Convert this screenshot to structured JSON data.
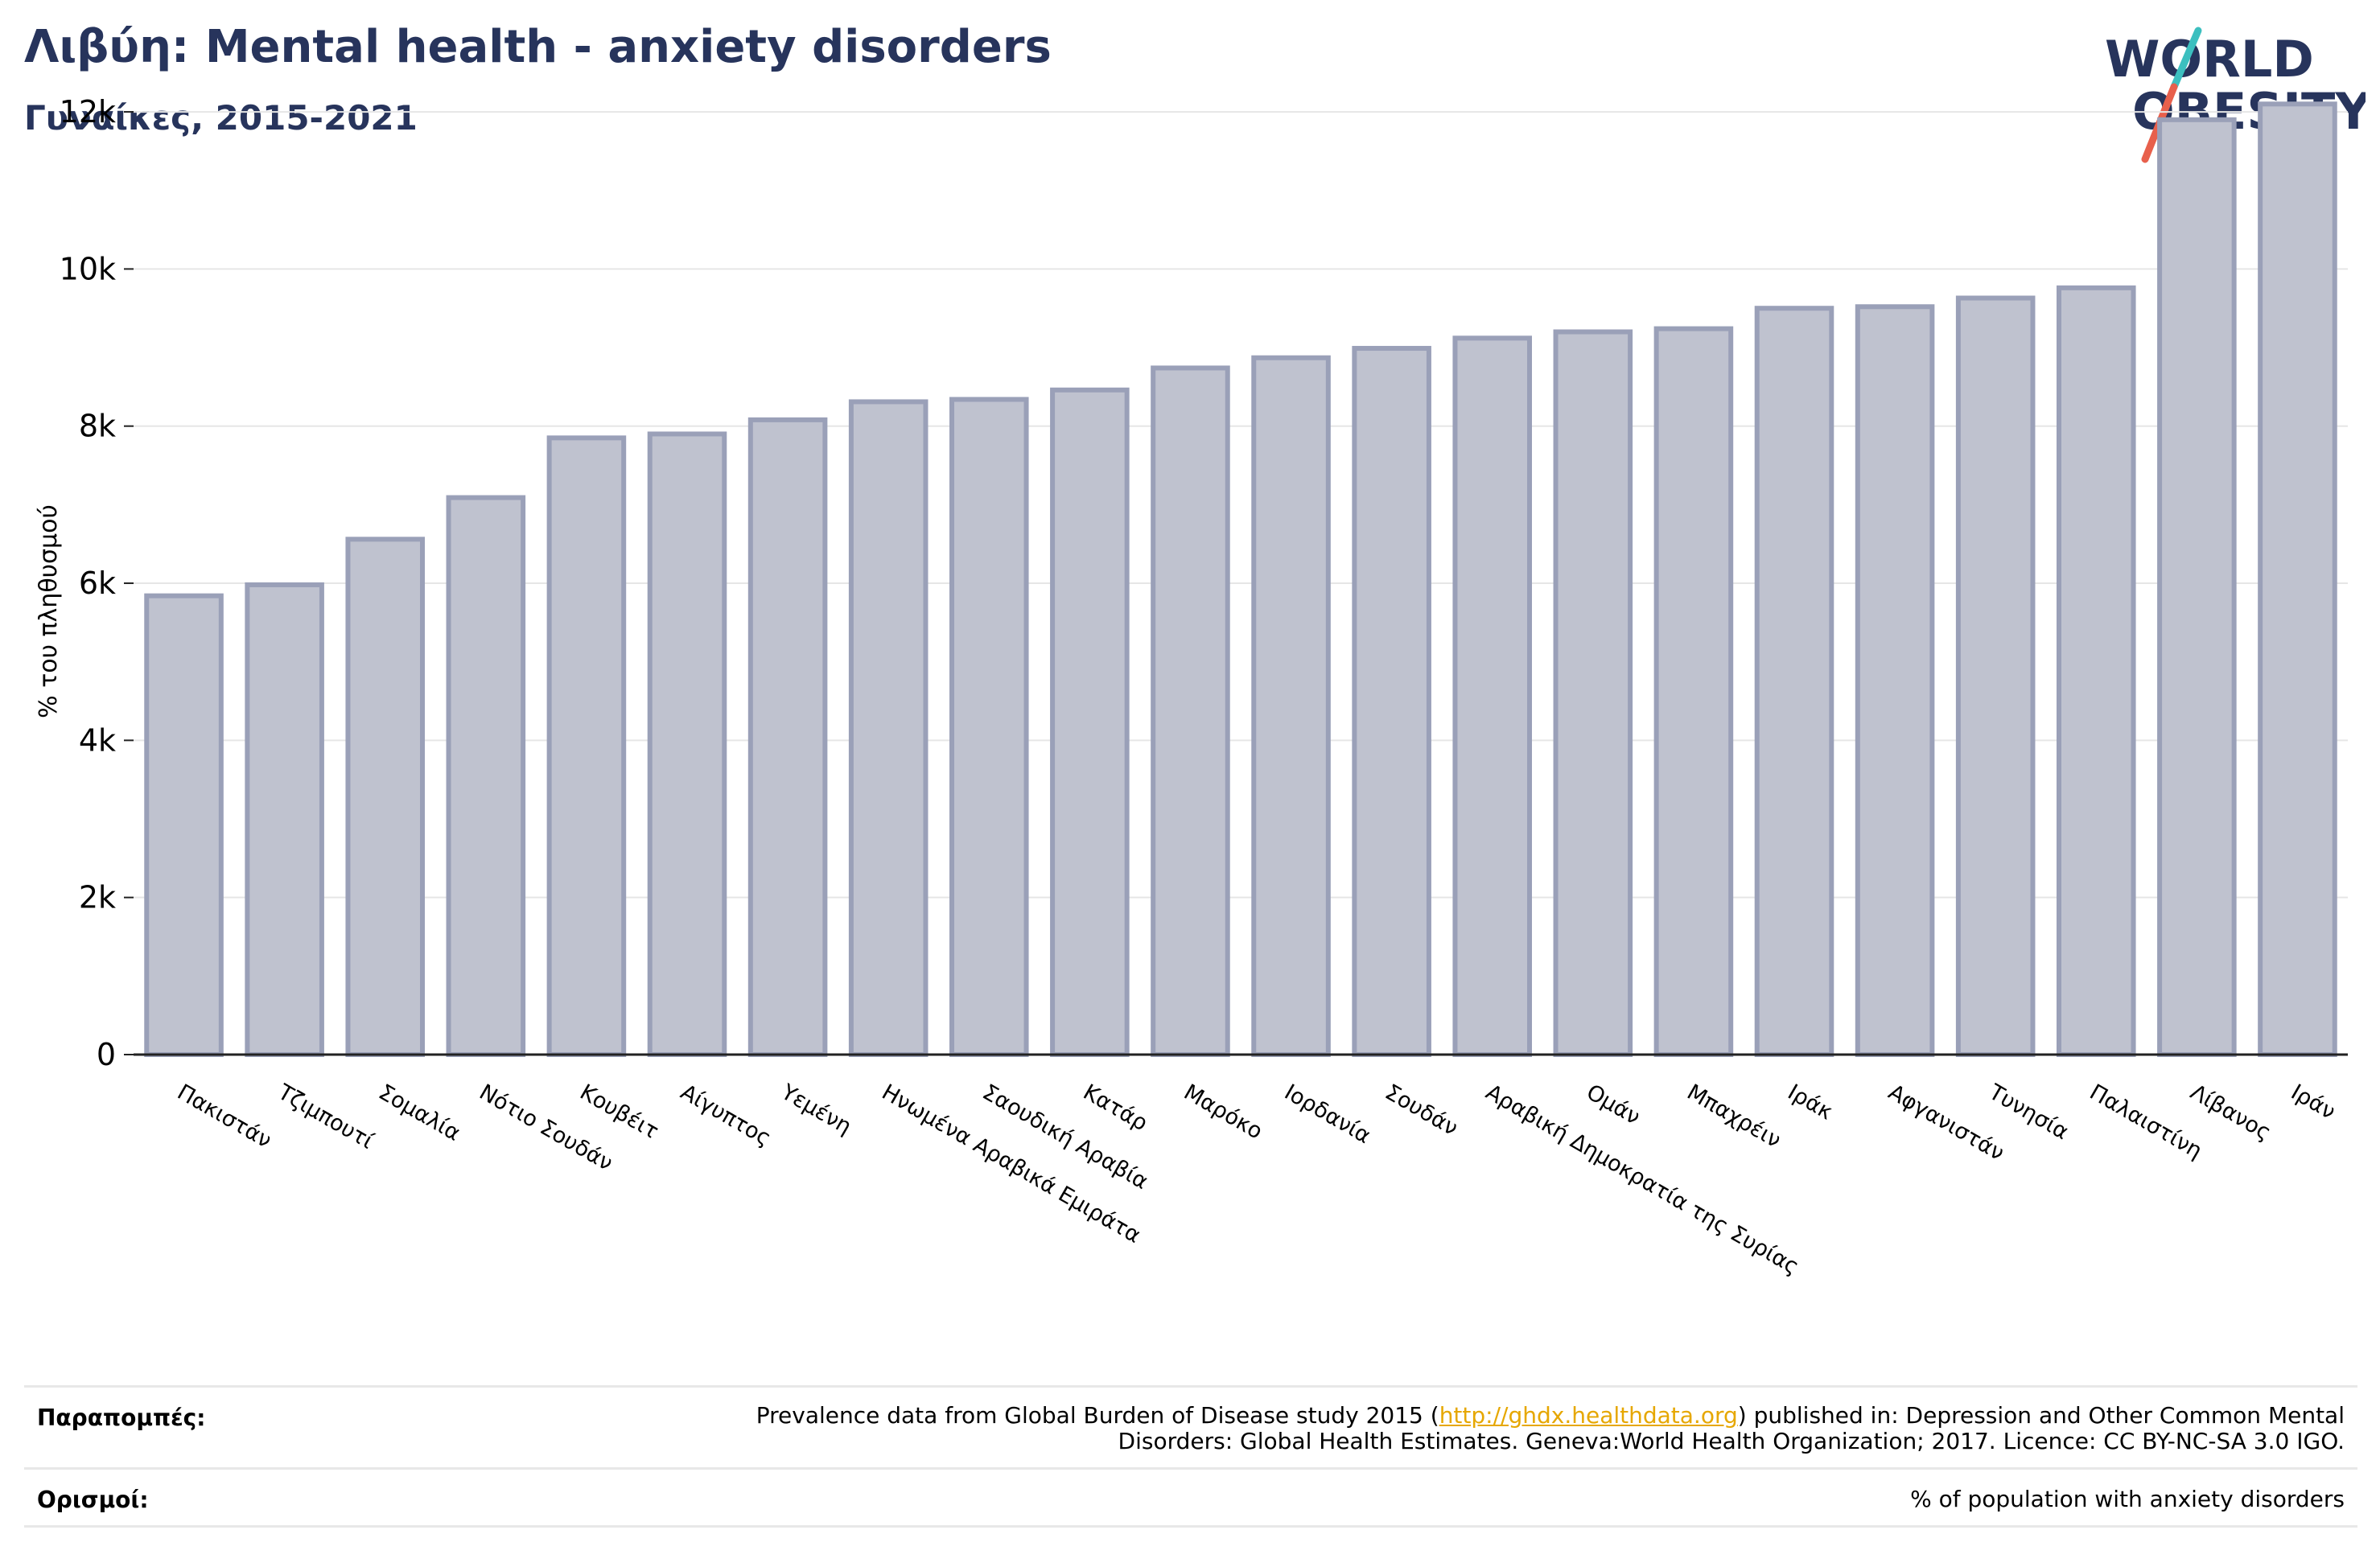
{
  "header": {
    "title": "Λιβύη: Mental health - anxiety disorders",
    "subtitle": "Γυναίκες, 2015-2021"
  },
  "logo": {
    "line1": "WORLD",
    "line2": "OBESITY",
    "text_color": "#27345c",
    "slash_colors": [
      "#3cbfbf",
      "#e8604c"
    ]
  },
  "chart_data": {
    "type": "bar",
    "categories": [
      "Πακιστάν",
      "Τζιμπουτί",
      "Σομαλία",
      "Νότιο Σουδάν",
      "Κουβέιτ",
      "Αίγυπτος",
      "Υεμένη",
      "Ηνωμένα Αραβικά Εμιράτα",
      "Σαουδική Αραβία",
      "Κατάρ",
      "Μαρόκο",
      "Ιορδανία",
      "Σουδάν",
      "Αραβική Δημοκρατία της Συρίας",
      "Ομάν",
      "Μπαχρέιν",
      "Ιράκ",
      "Αφγανιστάν",
      "Τυνησία",
      "Παλαιστίνη",
      "Λίβανος",
      "Ιράν"
    ],
    "values": [
      5840,
      5980,
      6560,
      7090,
      7850,
      7900,
      8080,
      8310,
      8340,
      8460,
      8740,
      8870,
      8990,
      9120,
      9200,
      9240,
      9500,
      9520,
      9630,
      9760,
      11900,
      12100
    ],
    "title": "Λιβύη: Mental health - anxiety disorders",
    "subtitle": "Γυναίκες, 2015-2021",
    "xlabel": "",
    "ylabel": "% του πληθυσμού",
    "ylim": [
      0,
      12400
    ],
    "yticks": [
      0,
      2000,
      4000,
      6000,
      8000,
      10000,
      12000
    ],
    "ytick_labels": [
      "0",
      "2k",
      "4k",
      "6k",
      "8k",
      "10k",
      "12k"
    ],
    "grid": true,
    "legend": "none",
    "bar_fill": "#bfc2cf",
    "bar_stroke": "#9aa0b8"
  },
  "footer": {
    "references_label": "Παραπομπές:",
    "references_pre": "Prevalence data from Global Burden of Disease study 2015 (",
    "references_link": "http://ghdx.healthdata.org",
    "references_post": ") published in: Depression and Other Common Mental",
    "references_line2": "Disorders: Global Health Estimates. Geneva:World Health Organization; 2017. Licence: CC BY-NC-SA 3.0 IGO.",
    "definitions_label": "Ορισμοί:",
    "definitions_text": "% of population with anxiety disorders"
  }
}
